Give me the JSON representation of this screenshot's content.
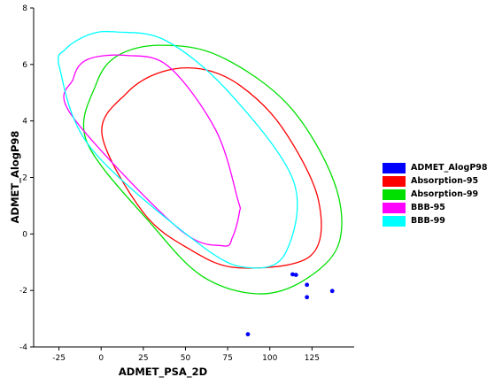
{
  "chart_data": {
    "type": "scatter",
    "xlabel": "ADMET_PSA_2D",
    "ylabel": "ADMET_AlogP98",
    "xlim": [
      -40,
      150
    ],
    "ylim": [
      -4,
      8
    ],
    "xticks": [
      -25,
      0,
      25,
      50,
      75,
      100,
      125
    ],
    "yticks": [
      -4,
      -2,
      0,
      2,
      4,
      6,
      8
    ],
    "grid": false,
    "legend_position": "right",
    "points": {
      "name": "ADMET_AlogP98",
      "color": "#0000ff",
      "data": [
        {
          "x": 113.5,
          "y": -1.43
        },
        {
          "x": 115.5,
          "y": -1.45
        },
        {
          "x": 122,
          "y": -1.8
        },
        {
          "x": 122,
          "y": -2.24
        },
        {
          "x": 137,
          "y": -2.02
        },
        {
          "x": 87,
          "y": -3.55
        }
      ]
    },
    "ellipses": [
      {
        "name": "Absorption-95",
        "color": "#ff0000",
        "points": [
          [
            59.3,
            5.84
          ],
          [
            82.5,
            5.25
          ],
          [
            107.5,
            3.75
          ],
          [
            128.8,
            1.2
          ],
          [
            124,
            -0.78
          ],
          [
            81.3,
            -1.2
          ],
          [
            52.5,
            -0.54
          ],
          [
            25,
            0.76
          ],
          [
            0.5,
            3.52
          ],
          [
            15,
            4.98
          ],
          [
            35.5,
            5.73
          ]
        ]
      },
      {
        "name": "Absorption-99",
        "color": "#00e000",
        "points": [
          [
            35.5,
            6.68
          ],
          [
            70,
            6.3
          ],
          [
            111,
            4.56
          ],
          [
            138,
            1.86
          ],
          [
            141,
            -0.32
          ],
          [
            120.5,
            -1.63
          ],
          [
            93,
            -2.12
          ],
          [
            60,
            -1.5
          ],
          [
            30,
            0.33
          ],
          [
            -8.5,
            3.26
          ],
          [
            -3,
            5.3
          ],
          [
            10,
            6.32
          ]
        ]
      },
      {
        "name": "BBB-95",
        "color": "#ff00ff",
        "points": [
          [
            15,
            6.32
          ],
          [
            40,
            5.93
          ],
          [
            68,
            3.67
          ],
          [
            81,
            1.22
          ],
          [
            82,
            0.78
          ],
          [
            78,
            -0.1
          ],
          [
            72,
            -0.42
          ],
          [
            45,
            0.24
          ],
          [
            -17.5,
            4.2
          ],
          [
            -16.5,
            5.5
          ],
          [
            -8,
            6.18
          ]
        ]
      },
      {
        "name": "BBB-99",
        "color": "#00ffff",
        "points": [
          [
            9,
            7.15
          ],
          [
            38.5,
            6.84
          ],
          [
            75.5,
            5.03
          ],
          [
            114,
            1.88
          ],
          [
            109.5,
            -0.65
          ],
          [
            89,
            -1.2
          ],
          [
            60,
            -0.44
          ],
          [
            -5.5,
            3.0
          ],
          [
            -24.5,
            5.85
          ],
          [
            -21,
            6.55
          ],
          [
            -6.5,
            7.07
          ]
        ]
      }
    ],
    "legend": [
      {
        "label": "ADMET_AlogP98",
        "color": "#0000ff"
      },
      {
        "label": "Absorption-95",
        "color": "#ff0000"
      },
      {
        "label": "Absorption-99",
        "color": "#00e000"
      },
      {
        "label": "BBB-95",
        "color": "#ff00ff"
      },
      {
        "label": "BBB-99",
        "color": "#00ffff"
      }
    ]
  }
}
